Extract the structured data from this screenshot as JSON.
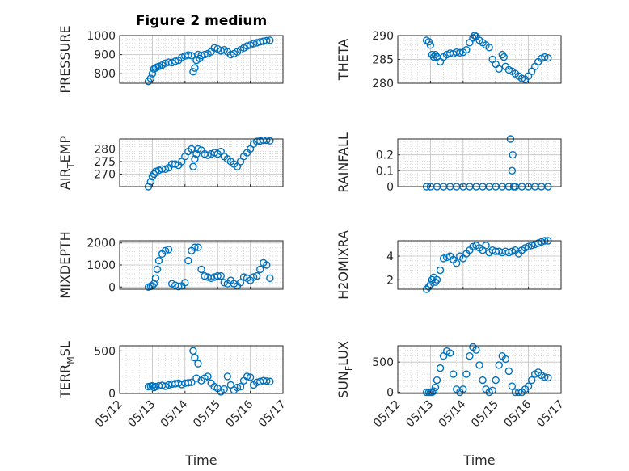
{
  "title": "Figure 2 medium",
  "colors": {
    "marker": "#0072BD",
    "axis": "#262626",
    "grid": "#bfbfbf"
  },
  "x_axis": {
    "label": "Time",
    "range": [
      "05/12",
      "05/17"
    ],
    "tick_labels": [
      "05/12",
      "05/13",
      "05/14",
      "05/15",
      "05/16",
      "05/17"
    ]
  },
  "chart_data": [
    {
      "type": "scatter",
      "id": "pressure",
      "ylabel": "PRESSURE",
      "title": "Figure 2 medium",
      "ylim": [
        750,
        1000
      ],
      "yticks": [
        800,
        900,
        1000
      ],
      "grid": true,
      "x": [
        0.88,
        0.95,
        1.0,
        1.05,
        1.1,
        1.15,
        1.2,
        1.3,
        1.4,
        1.5,
        1.6,
        1.7,
        1.8,
        1.9,
        2.0,
        2.1,
        2.2,
        2.25,
        2.3,
        2.35,
        2.4,
        2.45,
        2.5,
        2.6,
        2.7,
        2.8,
        2.9,
        3.0,
        3.1,
        3.2,
        3.3,
        3.4,
        3.5,
        3.6,
        3.7,
        3.8,
        3.9,
        4.0,
        4.1,
        4.2,
        4.3,
        4.4,
        4.5,
        4.6
      ],
      "y": [
        760,
        775,
        800,
        825,
        830,
        835,
        838,
        845,
        855,
        860,
        858,
        865,
        870,
        885,
        893,
        898,
        895,
        810,
        830,
        870,
        900,
        880,
        895,
        900,
        905,
        915,
        935,
        930,
        920,
        925,
        915,
        900,
        905,
        915,
        925,
        935,
        945,
        950,
        958,
        962,
        967,
        970,
        973,
        975
      ]
    },
    {
      "type": "scatter",
      "id": "theta",
      "ylabel": "THETA",
      "ylim": [
        280,
        290
      ],
      "yticks": [
        280,
        285,
        290
      ],
      "grid": true,
      "x": [
        0.88,
        0.95,
        1.0,
        1.05,
        1.1,
        1.15,
        1.2,
        1.3,
        1.4,
        1.5,
        1.6,
        1.7,
        1.8,
        1.9,
        2.0,
        2.1,
        2.2,
        2.3,
        2.35,
        2.4,
        2.5,
        2.6,
        2.7,
        2.8,
        2.9,
        3.0,
        3.1,
        3.2,
        3.25,
        3.3,
        3.4,
        3.5,
        3.6,
        3.7,
        3.8,
        3.9,
        4.0,
        4.1,
        4.2,
        4.3,
        4.4,
        4.5,
        4.6
      ],
      "y": [
        289,
        288.7,
        288,
        286,
        285.5,
        286,
        285.5,
        284.5,
        285.5,
        286,
        286.3,
        286.2,
        286.5,
        286.4,
        286.5,
        287,
        288.5,
        289.5,
        290,
        289.8,
        289,
        288.5,
        288,
        287.5,
        285,
        284,
        283,
        286,
        285.5,
        283.5,
        282.8,
        282.5,
        282,
        281.5,
        281,
        280.8,
        281.5,
        282.5,
        283.5,
        284.5,
        285.2,
        285.5,
        285.3
      ]
    },
    {
      "type": "scatter",
      "id": "air_temp",
      "ylabel": "AIR_TEMP",
      "ylim": [
        265,
        284
      ],
      "yticks": [
        270,
        275,
        280
      ],
      "grid": true,
      "x": [
        0.88,
        0.95,
        1.0,
        1.05,
        1.1,
        1.2,
        1.3,
        1.4,
        1.5,
        1.6,
        1.7,
        1.8,
        1.9,
        2.0,
        2.1,
        2.2,
        2.25,
        2.3,
        2.35,
        2.4,
        2.5,
        2.6,
        2.7,
        2.8,
        2.9,
        3.0,
        3.1,
        3.2,
        3.3,
        3.4,
        3.5,
        3.6,
        3.7,
        3.8,
        3.9,
        4.0,
        4.1,
        4.2,
        4.3,
        4.4,
        4.5,
        4.6
      ],
      "y": [
        265,
        267,
        269,
        270,
        271,
        271.5,
        272,
        272,
        272.5,
        274,
        274,
        273.5,
        275,
        277,
        279,
        280,
        273,
        276,
        278,
        280,
        279.5,
        278,
        277.5,
        278,
        278.5,
        278,
        279,
        277,
        276,
        275,
        274,
        273,
        275,
        277,
        278.5,
        280,
        282,
        283,
        283.2,
        283.5,
        283.5,
        283.3
      ]
    },
    {
      "type": "scatter",
      "id": "rainfall",
      "ylabel": "RAINFALL",
      "ylim": [
        0,
        0.3
      ],
      "yticks": [
        0,
        0.1,
        0.2
      ],
      "grid": true,
      "x": [
        0.88,
        1.0,
        1.2,
        1.4,
        1.6,
        1.8,
        2.0,
        2.2,
        2.4,
        2.6,
        2.8,
        3.0,
        3.2,
        3.4,
        3.45,
        3.5,
        3.52,
        3.55,
        3.6,
        3.8,
        4.0,
        4.2,
        4.4,
        4.6
      ],
      "y": [
        0,
        0,
        0,
        0,
        0,
        0,
        0,
        0,
        0,
        0,
        0,
        0,
        0,
        0,
        0.3,
        0.1,
        0.2,
        0,
        0,
        0,
        0,
        0,
        0,
        0
      ]
    },
    {
      "type": "scatter",
      "id": "mixdepth",
      "ylabel": "MIXDEPTH",
      "ylim": [
        -100,
        2100
      ],
      "yticks": [
        0,
        1000,
        2000
      ],
      "grid": true,
      "x": [
        0.88,
        0.95,
        1.0,
        1.05,
        1.1,
        1.15,
        1.2,
        1.3,
        1.4,
        1.5,
        1.6,
        1.7,
        1.8,
        1.9,
        2.0,
        2.1,
        2.2,
        2.3,
        2.4,
        2.5,
        2.6,
        2.7,
        2.8,
        2.9,
        3.0,
        3.1,
        3.2,
        3.3,
        3.4,
        3.5,
        3.6,
        3.7,
        3.8,
        3.9,
        4.0,
        4.1,
        4.2,
        4.3,
        4.4,
        4.5,
        4.6
      ],
      "y": [
        0,
        30,
        50,
        150,
        400,
        800,
        1200,
        1500,
        1650,
        1700,
        150,
        80,
        20,
        50,
        200,
        1200,
        1650,
        1800,
        1800,
        800,
        500,
        450,
        400,
        450,
        500,
        500,
        200,
        150,
        300,
        150,
        50,
        200,
        450,
        400,
        300,
        450,
        500,
        800,
        1100,
        1000,
        400
      ]
    },
    {
      "type": "scatter",
      "id": "h2omixra",
      "ylabel": "H2OMIXRA",
      "ylim": [
        1.2,
        5.3
      ],
      "yticks": [
        2,
        4
      ],
      "grid": true,
      "x": [
        0.88,
        0.95,
        1.0,
        1.05,
        1.1,
        1.15,
        1.2,
        1.3,
        1.4,
        1.5,
        1.6,
        1.7,
        1.8,
        1.9,
        2.0,
        2.1,
        2.2,
        2.3,
        2.4,
        2.5,
        2.6,
        2.7,
        2.8,
        2.9,
        3.0,
        3.1,
        3.2,
        3.3,
        3.4,
        3.5,
        3.6,
        3.7,
        3.8,
        3.9,
        4.0,
        4.1,
        4.2,
        4.3,
        4.4,
        4.5,
        4.6
      ],
      "y": [
        1.2,
        1.4,
        1.6,
        2.0,
        2.2,
        1.8,
        2.0,
        2.8,
        3.8,
        3.9,
        4.0,
        3.7,
        3.4,
        4.0,
        3.8,
        4.2,
        4.5,
        4.8,
        4.9,
        4.7,
        4.5,
        4.9,
        4.3,
        4.5,
        4.4,
        4.4,
        4.3,
        4.4,
        4.3,
        4.4,
        4.5,
        4.2,
        4.5,
        4.7,
        4.8,
        4.9,
        5.0,
        5.1,
        5.2,
        5.3,
        5.3
      ]
    },
    {
      "type": "scatter",
      "id": "terr_msl",
      "ylabel": "TERR_MSL",
      "ylim": [
        0,
        560
      ],
      "yticks": [
        0,
        500
      ],
      "grid": true,
      "x": [
        0.88,
        0.95,
        1.0,
        1.05,
        1.1,
        1.2,
        1.3,
        1.4,
        1.5,
        1.6,
        1.7,
        1.8,
        1.9,
        2.0,
        2.1,
        2.2,
        2.25,
        2.3,
        2.35,
        2.4,
        2.5,
        2.6,
        2.7,
        2.8,
        2.9,
        3.0,
        3.1,
        3.2,
        3.3,
        3.4,
        3.5,
        3.6,
        3.7,
        3.8,
        3.9,
        4.0,
        4.1,
        4.2,
        4.3,
        4.4,
        4.5,
        4.6
      ],
      "y": [
        80,
        85,
        90,
        70,
        80,
        90,
        95,
        85,
        100,
        110,
        115,
        120,
        105,
        120,
        125,
        130,
        500,
        420,
        180,
        350,
        150,
        180,
        200,
        120,
        80,
        60,
        20,
        50,
        200,
        100,
        40,
        70,
        80,
        150,
        200,
        190,
        100,
        130,
        140,
        150,
        145,
        140
      ]
    },
    {
      "type": "scatter",
      "id": "sun_flux",
      "ylabel": "SUN_FLUX",
      "ylim": [
        -20,
        770
      ],
      "yticks": [
        0,
        500
      ],
      "grid": true,
      "x": [
        0.88,
        0.95,
        1.0,
        1.05,
        1.1,
        1.15,
        1.2,
        1.3,
        1.4,
        1.5,
        1.6,
        1.7,
        1.8,
        1.9,
        2.0,
        2.1,
        2.2,
        2.3,
        2.4,
        2.5,
        2.6,
        2.7,
        2.8,
        2.9,
        3.0,
        3.1,
        3.2,
        3.3,
        3.4,
        3.5,
        3.6,
        3.7,
        3.8,
        3.9,
        4.0,
        4.1,
        4.2,
        4.3,
        4.4,
        4.5,
        4.6
      ],
      "y": [
        0,
        0,
        0,
        0,
        20,
        80,
        200,
        400,
        600,
        680,
        650,
        300,
        50,
        0,
        50,
        300,
        600,
        750,
        700,
        450,
        200,
        50,
        0,
        30,
        200,
        450,
        600,
        550,
        350,
        100,
        0,
        0,
        0,
        50,
        100,
        200,
        300,
        330,
        280,
        250,
        240
      ]
    }
  ]
}
